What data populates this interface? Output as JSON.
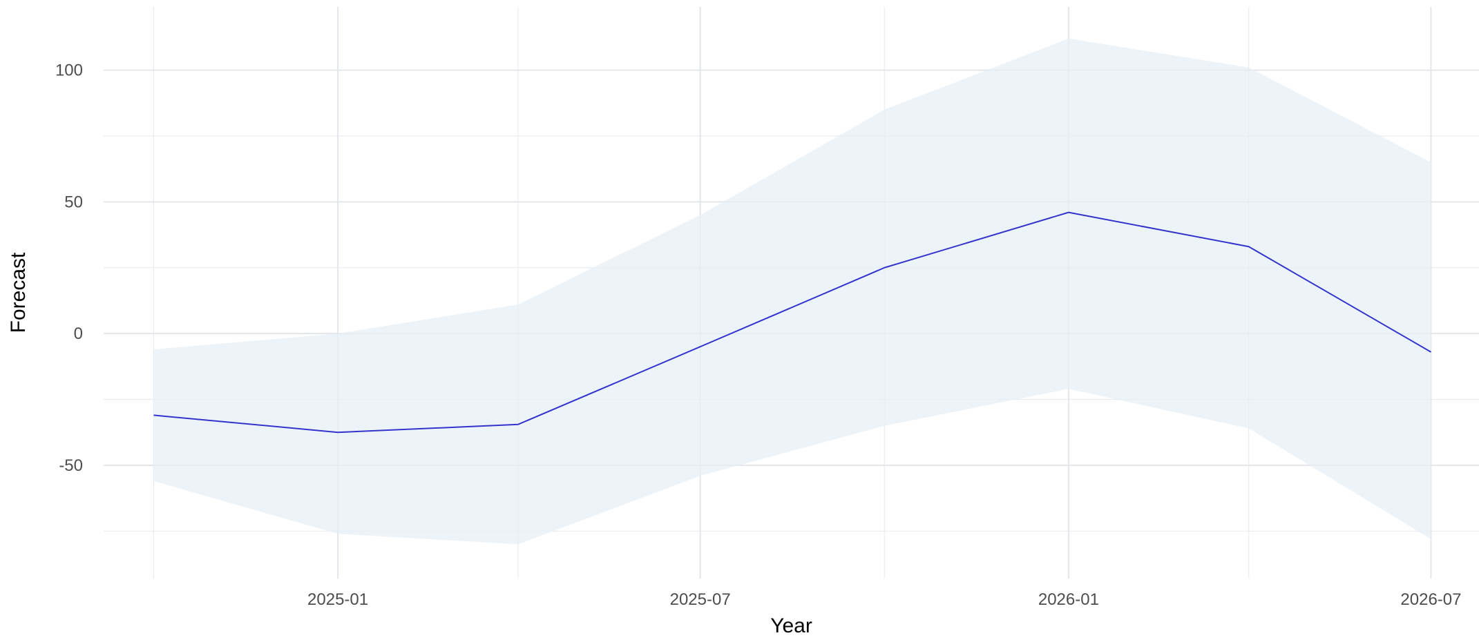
{
  "chart_data": {
    "type": "line",
    "title": "",
    "xlabel": "Year",
    "ylabel": "Forecast",
    "x_ticks": [
      "2025-01",
      "2025-07",
      "2026-01",
      "2026-07"
    ],
    "y_ticks": [
      -50,
      0,
      50,
      100
    ],
    "xlim": [
      "2024-09-06",
      "2026-07-25"
    ],
    "ylim": [
      -93,
      124
    ],
    "grid": true,
    "legend": "none",
    "series": [
      {
        "kind": "line",
        "color": "#3333cc",
        "x": [
          "2024-10-01",
          "2025-01-01",
          "2025-04-01",
          "2025-07-01",
          "2025-10-01",
          "2026-01-01",
          "2026-04-01",
          "2026-07-01"
        ],
        "y": [
          -31,
          -37.5,
          -34.5,
          -5,
          25,
          46,
          33,
          -7
        ]
      },
      {
        "kind": "band",
        "color": "#e5f0f6",
        "x": [
          "2024-10-01",
          "2025-01-01",
          "2025-04-01",
          "2025-07-01",
          "2025-10-01",
          "2026-01-01",
          "2026-04-01",
          "2026-07-01"
        ],
        "lower": [
          -56,
          -76,
          -80,
          -54,
          -35,
          -21,
          -36,
          -78
        ],
        "upper": [
          -6,
          0,
          11,
          45,
          85,
          112,
          101,
          65
        ]
      }
    ]
  }
}
